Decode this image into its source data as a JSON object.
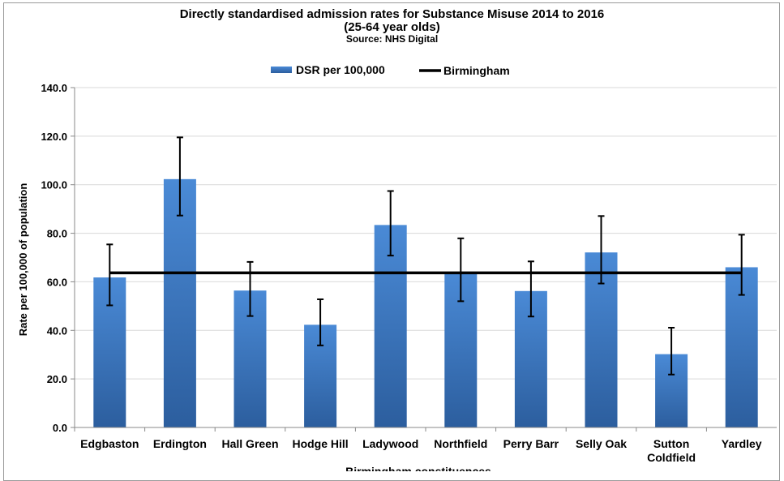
{
  "chart_data": {
    "type": "bar",
    "title": "Directly standardised admission rates for Substance Misuse 2014 to 2016",
    "subtitle": "(25-64 year olds)",
    "source": "Source: NHS Digital",
    "xlabel": "Birmingham constituences",
    "ylabel": "Rate per 100,000 of population",
    "ylim": [
      0,
      140
    ],
    "yticks": [
      "0.0",
      "20.0",
      "40.0",
      "60.0",
      "80.0",
      "100.0",
      "120.0",
      "140.0"
    ],
    "grid": true,
    "legend_placement": "top-center",
    "categories": [
      [
        "Edgbaston"
      ],
      [
        "Erdington"
      ],
      [
        "Hall Green"
      ],
      [
        "Hodge Hill"
      ],
      [
        "Ladywood"
      ],
      [
        "Northfield"
      ],
      [
        "Perry Barr"
      ],
      [
        "Selly Oak"
      ],
      [
        "Sutton",
        "Coldfield"
      ],
      [
        "Yardley"
      ]
    ],
    "series": [
      {
        "name": "DSR per 100,000",
        "values": [
          61.8,
          102.3,
          56.4,
          42.3,
          83.4,
          63.5,
          56.2,
          72.1,
          30.2,
          66.0
        ],
        "lower": [
          50.3,
          87.3,
          45.9,
          33.8,
          70.8,
          52.0,
          45.7,
          59.3,
          21.8,
          54.6
        ],
        "upper": [
          75.4,
          119.5,
          68.2,
          52.8,
          97.4,
          77.9,
          68.4,
          87.1,
          41.1,
          79.4
        ],
        "color": "#3a78c8"
      },
      {
        "name": "Birmingham",
        "value": 63.7,
        "color": "#000000"
      }
    ]
  }
}
